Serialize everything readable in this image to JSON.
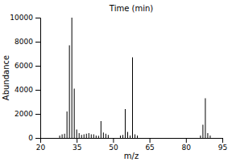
{
  "chart_data": {
    "type": "bar",
    "title": "Time (min)",
    "x_label": "m/z",
    "y_label": "Abundance",
    "x": [
      28,
      29,
      30,
      31,
      32,
      33,
      34,
      35,
      36,
      37,
      38,
      39,
      40,
      41,
      42,
      43,
      44,
      45,
      46,
      47,
      48,
      53,
      54,
      55,
      56,
      57,
      58,
      59,
      60,
      86,
      87,
      88,
      89,
      90
    ],
    "values": [
      200,
      300,
      350,
      2200,
      7700,
      10000,
      4100,
      700,
      400,
      250,
      300,
      350,
      400,
      300,
      300,
      200,
      180,
      1400,
      450,
      350,
      250,
      200,
      250,
      2400,
      500,
      200,
      6700,
      300,
      200,
      200,
      1100,
      3300,
      400,
      200
    ],
    "color": "#000000",
    "xlim": [
      20,
      95
    ],
    "xticks": [
      20,
      35,
      50,
      65,
      80,
      95
    ],
    "ylim": [
      0,
      10000
    ],
    "yticks": [
      0,
      2000,
      4000,
      6000,
      8000,
      10000
    ],
    "grid": false
  }
}
